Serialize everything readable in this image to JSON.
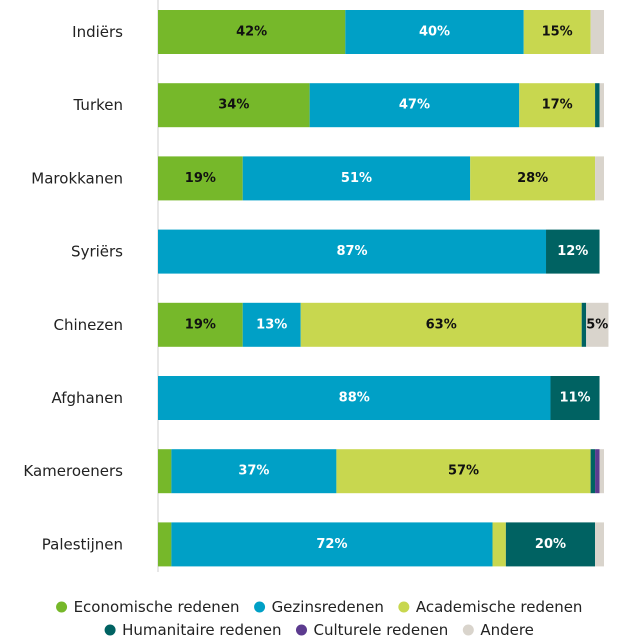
{
  "chart_data": {
    "type": "stacked-bar",
    "orientation": "horizontal",
    "categories": [
      "Indiërs",
      "Turken",
      "Marokkanen",
      "Syriërs",
      "Chinezen",
      "Afghanen",
      "Kameroeners",
      "Palestijnen"
    ],
    "xlim": [
      0,
      100
    ],
    "series": [
      {
        "name": "Economische redenen",
        "color": "#76b82a",
        "values": [
          42,
          34,
          19,
          0,
          19,
          0,
          3,
          3
        ],
        "value_labels": [
          "42%",
          "34%",
          "19%",
          null,
          "19%",
          null,
          null,
          null
        ]
      },
      {
        "name": "Gezinsredenen",
        "color": "#00a0c6",
        "values": [
          40,
          47,
          51,
          87,
          13,
          88,
          37,
          72
        ],
        "value_labels": [
          "40%",
          "47%",
          "51%",
          "87%",
          "13%",
          "88%",
          "37%",
          "72%"
        ]
      },
      {
        "name": "Academische redenen",
        "color": "#c8d74f",
        "values": [
          15,
          17,
          28,
          0,
          63,
          0,
          57,
          3
        ],
        "value_labels": [
          "15%",
          "17%",
          "28%",
          null,
          "63%",
          null,
          "57%",
          null
        ]
      },
      {
        "name": "Humanitaire redenen",
        "color": "#006262",
        "values": [
          0,
          1,
          0,
          12,
          1,
          11,
          1,
          20
        ],
        "value_labels": [
          null,
          null,
          null,
          "12%",
          null,
          "11%",
          null,
          "20%"
        ]
      },
      {
        "name": "Culturele redenen",
        "color": "#5c3b8f",
        "values": [
          0,
          0,
          0,
          0,
          0,
          0,
          1,
          0
        ],
        "value_labels": [
          null,
          null,
          null,
          null,
          null,
          null,
          null,
          null
        ]
      },
      {
        "name": "Andere",
        "color": "#d9d4cc",
        "values": [
          3,
          1,
          2,
          0,
          5,
          0,
          1,
          2
        ],
        "value_labels": [
          null,
          null,
          null,
          null,
          "5%",
          null,
          null,
          null
        ]
      }
    ]
  }
}
